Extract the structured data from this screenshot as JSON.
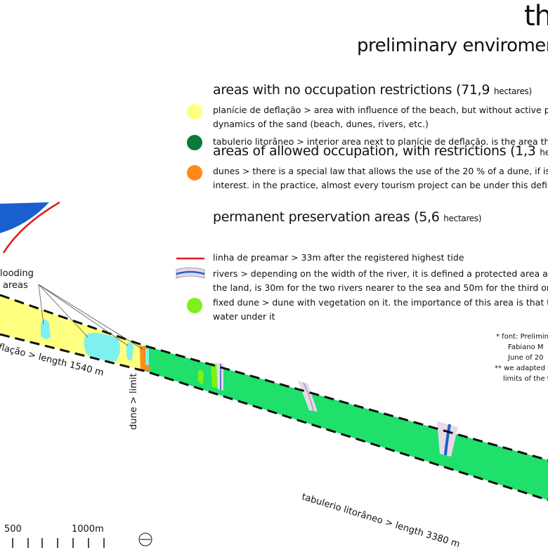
{
  "header": {
    "title": "th",
    "subtitle": "preliminary enviromen"
  },
  "legend": {
    "sections": [
      {
        "title": "areas with no occupation restrictions (71,9",
        "unit": "hectares)",
        "items": [
          {
            "symbol": "yellow-dot",
            "color": "#ffff80",
            "lines": [
              "planície de deflação > area with influence of the beach, but without active par",
              "dynamics of the sand (beach, dunes, rivers, etc.)"
            ]
          },
          {
            "symbol": "darkgreen-dot",
            "color": "#0a7a3a",
            "lines": [
              "tabulerio litorâneo > interior area next to planície de deflação. is the area that"
            ]
          }
        ]
      },
      {
        "title": "areas of allowed occupation, with restrictions (1,3",
        "unit": "hec",
        "items": [
          {
            "symbol": "orange-dot",
            "color": "#ff8a1a",
            "lines": [
              "dunes > there is a special law that allows the use of the 20 % of a dune, if is a",
              "interest. in the practice, almost every tourism project can be under this definitio"
            ]
          }
        ]
      },
      {
        "title": "permanent preservation areas (5,6",
        "unit": "hectares)",
        "items": [
          {
            "symbol": "red-line",
            "color": "#e01b1b",
            "lines": [
              "linha de preamar > 33m after the registered highest tide"
            ]
          },
          {
            "symbol": "river-swatch",
            "color": "#1a5fd0",
            "lines": [
              "rivers > depending on the width of the river, it is defined a protected area arou",
              "the land, is 30m for the two rivers nearer to the sea and 50m for the third one"
            ]
          },
          {
            "symbol": "lightgreen-dot",
            "color": "#7ef01a",
            "lines": [
              "fixed dune > dune with vegetation on it. the importance of this area is that ther",
              "water under it"
            ]
          }
        ]
      }
    ]
  },
  "notes": {
    "line1": "* font: Prelimina",
    "line2": "Fabiano M",
    "line3": "June of 20",
    "line4": "** we adapted th",
    "line5": "limits of the to"
  },
  "map": {
    "flooding_label_1": "looding",
    "flooding_label_2": "areas",
    "deflacao_label": "flação > length 1540 m",
    "dune_label": "dune > limit",
    "tabulerio_label": "tabulerio litorâneo > length 3380 m",
    "colors": {
      "sea": "#1a5fd0",
      "deflacao": "#ffff80",
      "flooding": "#7ff0f0",
      "tabulerio": "#1fe06a",
      "dune": "#ff8a1a",
      "fixed_dune": "#7ef01a",
      "river": "#1a5fd0",
      "river_buffer": "#e8d8e8",
      "preamar": "#e01b1b"
    }
  },
  "scale": {
    "label_500": "500",
    "label_1000": "1000m"
  }
}
